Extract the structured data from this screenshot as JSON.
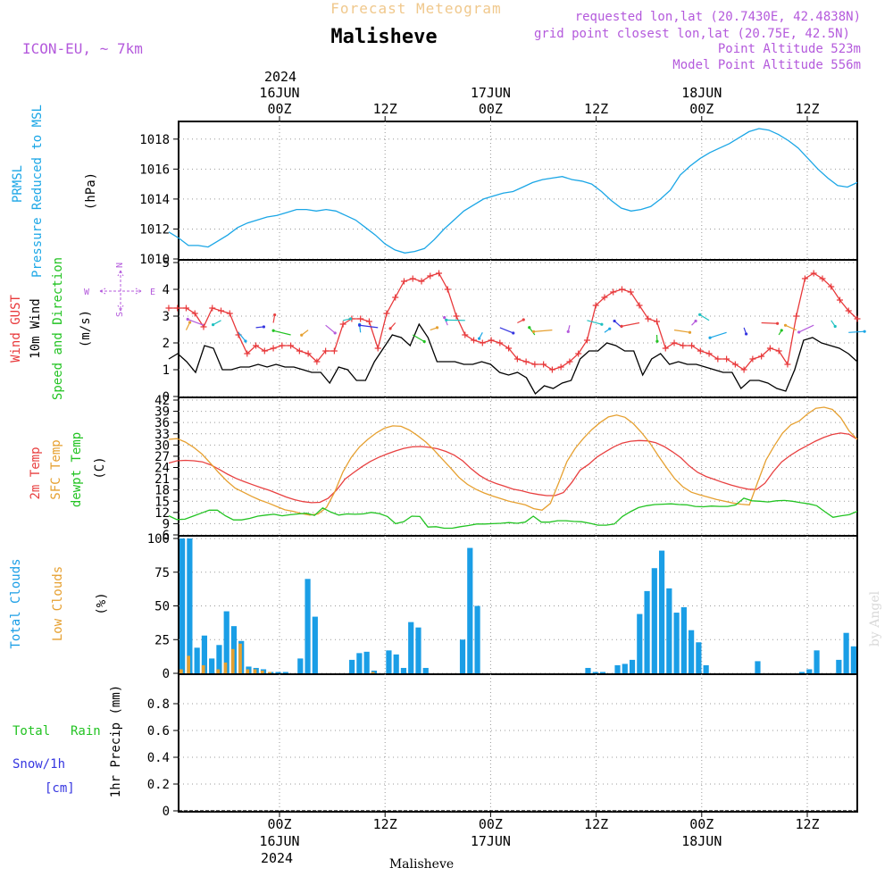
{
  "header": {
    "super_title": "Forecast Meteogram",
    "location": "Malisheve",
    "model": "ICON-EU, ~ 7km",
    "requested": "requested lon,lat (20.7430E, 42.4838N)",
    "grid_point": "grid point closest lon,lat (20.75E, 42.5N)",
    "point_alt": "Point Altitude 523m",
    "model_alt": "Model Point Altitude 556m",
    "footer_location": "Malisheve",
    "watermark": "by Angel"
  },
  "colors": {
    "pressure": "#1aa6e6",
    "gust": "#e8383a",
    "wind": "#000000",
    "t2m": "#e84040",
    "tsfc": "#e6a030",
    "dewpt": "#22c322",
    "total_clouds": "#1a9ee6",
    "low_clouds": "#e6a030",
    "rain": "#22c322",
    "snow": "#3535e0",
    "label_purple": "#b45adc"
  },
  "time_axis": {
    "top_year": "2024",
    "top_days": [
      "16JUN",
      "17JUN",
      "18JUN"
    ],
    "top_hours": [
      "00Z",
      "12Z",
      "00Z",
      "12Z",
      "00Z",
      "12Z"
    ],
    "bottom_hours": [
      "00Z",
      "12Z",
      "00Z",
      "12Z",
      "00Z",
      "12Z"
    ],
    "bottom_days": [
      "16JUN",
      "17JUN",
      "18JUN"
    ],
    "bottom_year": "2024"
  },
  "panel_labels": {
    "prmsl": "PRMSL",
    "pressure_reduced": "Pressure Reduced to MSL",
    "hpa": "(hPa)",
    "wind_gust": "Wind GUST",
    "wind_10m": "10m Wind",
    "speed_dir": "Speed and Direction",
    "ms": "(m/s)",
    "compass_n": "N",
    "compass_s": "S",
    "compass_w": "W",
    "compass_e": "E",
    "t2m": "2m Temp",
    "sfc_temp": "SFC Temp",
    "dewpt": "dewpt Temp",
    "c": "(C)",
    "total_clouds": "Total Clouds",
    "low_clouds": "Low Clouds",
    "pct": "(%)",
    "total": "Total",
    "rain": "Rain",
    "snow": "Snow/1h",
    "cm": "[cm]",
    "precip": "1hr Precip (mm)"
  },
  "chart_data": [
    {
      "type": "line",
      "name": "prmsl",
      "ylim": [
        1010,
        1019
      ],
      "yticks": [
        "1010",
        "1012",
        "1014",
        "1016",
        "1018"
      ],
      "x_hours_start": -13,
      "series": [
        {
          "name": "PRMSL",
          "values": [
            1011.8,
            1011.4,
            1010.9,
            1010.9,
            1010.8,
            1011.2,
            1011.6,
            1012.1,
            1012.4,
            1012.6,
            1012.8,
            1012.9,
            1013.1,
            1013.3,
            1013.3,
            1013.2,
            1013.3,
            1013.2,
            1012.9,
            1012.6,
            1012.1,
            1011.6,
            1011.0,
            1010.6,
            1010.4,
            1010.5,
            1010.7,
            1011.3,
            1012.0,
            1012.6,
            1013.2,
            1013.6,
            1014.0,
            1014.2,
            1014.4,
            1014.5,
            1014.8,
            1015.1,
            1015.3,
            1015.4,
            1015.5,
            1015.3,
            1015.2,
            1015.0,
            1014.5,
            1013.9,
            1013.4,
            1013.2,
            1013.3,
            1013.5,
            1014.0,
            1014.6,
            1015.6,
            1016.2,
            1016.7,
            1017.1,
            1017.4,
            1017.7,
            1018.1,
            1018.5,
            1018.7,
            1018.6,
            1018.3,
            1017.9,
            1017.4,
            1016.7,
            1016.0,
            1015.4,
            1014.9,
            1014.8,
            1015.1
          ]
        }
      ]
    },
    {
      "type": "line",
      "name": "wind",
      "ylim": [
        0,
        5
      ],
      "yticks": [
        "0",
        "1",
        "2",
        "3",
        "4",
        "5"
      ],
      "x_hours_start": -13,
      "series": [
        {
          "name": "Wind GUST",
          "values": [
            3.3,
            3.3,
            3.3,
            3.1,
            2.6,
            3.3,
            3.2,
            3.1,
            2.3,
            1.6,
            1.9,
            1.7,
            1.8,
            1.9,
            1.9,
            1.7,
            1.6,
            1.3,
            1.7,
            1.7,
            2.7,
            2.9,
            2.9,
            2.8,
            1.8,
            3.1,
            3.7,
            4.3,
            4.4,
            4.3,
            4.5,
            4.6,
            4.0,
            3.0,
            2.3,
            2.1,
            2.0,
            2.1,
            2.0,
            1.8,
            1.4,
            1.3,
            1.2,
            1.2,
            1.0,
            1.1,
            1.3,
            1.6,
            2.1,
            3.4,
            3.7,
            3.9,
            4.0,
            3.9,
            3.4,
            2.9,
            2.8,
            1.8,
            2.0,
            1.9,
            1.9,
            1.7,
            1.6,
            1.4,
            1.4,
            1.2,
            1.0,
            1.4,
            1.5,
            1.8,
            1.7,
            1.2,
            3.0,
            4.4,
            4.6,
            4.4,
            4.1,
            3.6,
            3.2,
            2.9
          ]
        },
        {
          "name": "10m Wind",
          "values": [
            1.4,
            1.6,
            1.3,
            0.9,
            1.9,
            1.8,
            1.0,
            1.0,
            1.1,
            1.1,
            1.2,
            1.1,
            1.2,
            1.1,
            1.1,
            1.0,
            0.9,
            0.9,
            0.5,
            1.1,
            1.0,
            0.6,
            0.6,
            1.3,
            1.8,
            2.3,
            2.2,
            1.9,
            2.7,
            2.2,
            1.3,
            1.3,
            1.3,
            1.2,
            1.2,
            1.3,
            1.2,
            0.9,
            0.8,
            0.9,
            0.7,
            0.1,
            0.4,
            0.3,
            0.5,
            0.6,
            1.4,
            1.7,
            1.7,
            2.0,
            1.9,
            1.7,
            1.7,
            0.8,
            1.4,
            1.6,
            1.2,
            1.3,
            1.2,
            1.2,
            1.1,
            1.0,
            0.9,
            0.9,
            0.3,
            0.6,
            0.6,
            0.5,
            0.3,
            0.2,
            1.0,
            2.1,
            2.2,
            2.0,
            1.9,
            1.8,
            1.6,
            1.3
          ]
        }
      ]
    },
    {
      "type": "line",
      "name": "temperature",
      "ylim": [
        6,
        42
      ],
      "yticks": [
        "6",
        "9",
        "12",
        "15",
        "18",
        "21",
        "24",
        "27",
        "30",
        "33",
        "36",
        "39",
        "42"
      ],
      "x_hours_start": -13,
      "series": [
        {
          "name": "2m Temp",
          "values": [
            25.2,
            25.8,
            25.9,
            25.8,
            25.5,
            24.7,
            23.5,
            22.2,
            21.1,
            20.2,
            19.4,
            18.6,
            17.9,
            17.0,
            16.1,
            15.4,
            14.9,
            14.6,
            14.7,
            15.8,
            18.0,
            20.9,
            22.6,
            24.2,
            25.6,
            26.7,
            27.6,
            28.4,
            29.1,
            29.5,
            29.6,
            29.4,
            29.0,
            28.3,
            27.3,
            25.8,
            23.7,
            21.9,
            20.6,
            19.7,
            19.0,
            18.2,
            17.8,
            17.2,
            16.8,
            16.5,
            16.5,
            17.3,
            20.0,
            23.3,
            24.8,
            26.8,
            28.2,
            29.5,
            30.5,
            31.0,
            31.2,
            31.1,
            30.6,
            29.6,
            28.2,
            26.6,
            24.4,
            22.7,
            21.6,
            20.8,
            20.0,
            19.3,
            18.7,
            18.2,
            18.1,
            19.8,
            22.9,
            25.5,
            27.2,
            28.6,
            29.8,
            31.0,
            32.0,
            32.8,
            33.2,
            32.9,
            31.5
          ]
        },
        {
          "name": "SFC Temp",
          "values": [
            31.5,
            31.7,
            30.8,
            29.4,
            27.6,
            25.2,
            22.7,
            20.4,
            18.5,
            17.4,
            16.3,
            15.3,
            14.5,
            13.6,
            12.7,
            12.3,
            11.7,
            11.3,
            11.6,
            13.3,
            17.4,
            22.8,
            26.7,
            29.5,
            31.5,
            33.2,
            34.5,
            35.1,
            35.0,
            34.0,
            32.5,
            30.8,
            28.6,
            26.2,
            23.8,
            21.3,
            19.5,
            18.2,
            17.2,
            16.4,
            15.7,
            15.0,
            14.5,
            14.0,
            13.0,
            12.6,
            14.4,
            19.9,
            25.6,
            29.1,
            31.8,
            34.1,
            36.0,
            37.5,
            38.0,
            37.4,
            35.7,
            33.3,
            30.5,
            27.2,
            24.0,
            21.0,
            18.8,
            17.4,
            16.7,
            16.1,
            15.5,
            15.0,
            14.5,
            14.2,
            14.0,
            20.1,
            26.0,
            29.8,
            33.2,
            35.4,
            36.4,
            38.3,
            39.8,
            40.1,
            39.5,
            37.3,
            33.8,
            31.5
          ]
        },
        {
          "name": "dewpt Temp",
          "values": [
            11.1,
            10.1,
            10.2,
            11.0,
            11.8,
            12.6,
            12.6,
            11.1,
            10.0,
            10.0,
            10.4,
            11.0,
            11.3,
            11.5,
            11.1,
            11.4,
            11.6,
            11.8,
            11.2,
            13.2,
            12.1,
            11.3,
            11.6,
            11.5,
            11.6,
            12.0,
            11.7,
            10.9,
            9.0,
            9.5,
            11.0,
            10.9,
            8.1,
            8.2,
            7.8,
            7.8,
            8.2,
            8.5,
            8.9,
            8.9,
            9.0,
            9.1,
            9.3,
            9.1,
            9.4,
            11.0,
            9.4,
            9.4,
            9.8,
            9.8,
            9.6,
            9.5,
            9.1,
            8.6,
            8.6,
            8.9,
            10.9,
            12.2,
            13.3,
            13.8,
            14.1,
            14.2,
            14.3,
            14.1,
            14.0,
            13.6,
            13.5,
            13.7,
            13.6,
            13.6,
            14.0,
            15.8,
            15.1,
            15.0,
            14.8,
            15.1,
            15.2,
            15.0,
            14.6,
            14.3,
            13.8,
            12.2,
            10.7,
            11.1,
            11.4,
            12.3
          ]
        }
      ]
    },
    {
      "type": "bar",
      "name": "clouds",
      "ylim": [
        0,
        100
      ],
      "yticks": [
        "0",
        "25",
        "50",
        "75",
        "100"
      ],
      "x_hours_start": -13,
      "series": [
        {
          "name": "Total Clouds",
          "values": [
            100,
            100,
            19,
            28,
            11,
            21,
            46,
            35,
            24,
            5,
            4,
            3,
            1,
            1,
            1,
            0,
            11,
            70,
            42,
            0,
            0,
            0,
            0,
            10,
            15,
            16,
            2,
            0,
            17,
            14,
            4,
            38,
            34,
            4,
            0,
            0,
            0,
            0,
            25,
            93,
            50,
            0,
            0,
            0,
            0,
            0,
            0,
            0,
            0,
            0,
            0,
            0,
            0,
            0,
            0,
            4,
            1,
            1,
            0,
            6,
            7,
            10,
            44,
            61,
            78,
            91,
            63,
            45,
            49,
            32,
            23,
            6,
            0,
            0,
            0,
            0,
            0,
            0,
            9,
            0,
            0,
            0,
            0,
            0,
            1,
            3,
            17,
            0,
            0,
            10,
            30,
            20
          ]
        },
        {
          "name": "Low Clouds",
          "values": [
            3,
            13,
            0,
            6,
            0,
            3,
            8,
            18,
            22,
            3,
            3,
            2,
            1,
            0,
            0,
            0,
            0,
            0,
            0,
            0,
            0,
            0,
            0,
            0,
            0,
            0,
            1,
            0,
            0,
            0,
            0,
            0,
            0,
            0,
            0,
            0,
            0,
            0,
            0,
            0,
            0,
            0,
            0,
            0,
            0,
            0,
            0,
            0,
            0,
            0,
            0,
            0,
            0,
            0,
            0,
            0,
            0,
            0,
            0,
            0,
            0,
            0,
            0,
            0,
            0,
            0,
            0,
            0,
            0,
            0,
            0,
            0,
            0,
            0,
            0,
            0,
            0,
            0,
            0,
            0,
            0,
            0,
            0,
            0,
            0,
            0,
            0,
            0,
            0,
            0,
            0,
            0
          ]
        }
      ]
    },
    {
      "type": "bar",
      "name": "precip",
      "ylim": [
        0,
        1
      ],
      "yticks": [
        "0",
        "0.2",
        "0.4",
        "0.6",
        "0.8"
      ],
      "x_hours_start": -13,
      "series": [
        {
          "name": "Total Rain",
          "values": [
            0.0
          ]
        },
        {
          "name": "Snow/1h",
          "values": [
            0.0
          ]
        }
      ]
    }
  ]
}
